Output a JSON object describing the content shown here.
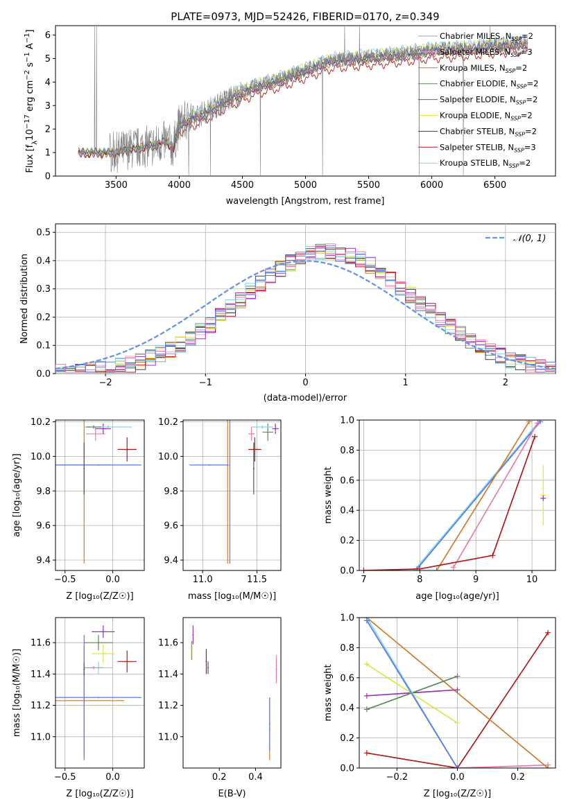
{
  "figure_title": "PLATE=0973, MJD=52426, FIBERID=0170, z=0.349",
  "colors": {
    "chabrier_miles": "#a0a0a0",
    "salpeter_miles": "#ff9ff0",
    "kroupa_miles": "#d2782a",
    "chabrier_elodie": "#5a8a5a",
    "salpeter_elodie": "#9b30b8",
    "kroupa_elodie": "#d8e84a",
    "chabrier_stelib": "#404040",
    "salpeter_stelib": "#b01818",
    "kroupa_stelib": "#80d8e0",
    "gauss": "#6496e6",
    "purple_blue": "#5a78e6",
    "pink": "#e87ab0",
    "grey_dark": "#555555"
  },
  "chart_data": [
    {
      "id": "spectrum",
      "type": "line",
      "title": "PLATE=0973, MJD=52426, FIBERID=0170, z=0.349",
      "xlabel": "wavelength [Angstrom, rest frame]",
      "ylabel": "Flux [f_λ 10⁻¹⁷ erg cm⁻² s⁻¹ A⁻¹]",
      "xlim": [
        3020,
        6980
      ],
      "ylim": [
        0,
        6.4
      ],
      "xticks": [
        3500,
        4000,
        4500,
        5000,
        5500,
        6000,
        6500
      ],
      "yticks": [
        0,
        1,
        2,
        3,
        4,
        5,
        6
      ],
      "grid": false,
      "legend_position": "top-right",
      "legend": [
        {
          "label": "Chabrier MILES, N",
          "sub": "SSP",
          "suffix": "=2",
          "color": "#a0a0a0"
        },
        {
          "label": "Salpeter MILES, N",
          "sub": "SSP",
          "suffix": "=3",
          "color": "#ff9ff0"
        },
        {
          "label": "Kroupa MILES, N",
          "sub": "SSP",
          "suffix": "=2",
          "color": "#d2782a"
        },
        {
          "label": "Chabrier ELODIE, N",
          "sub": "SSP",
          "suffix": "=2",
          "color": "#5a8a5a"
        },
        {
          "label": "Salpeter ELODIE, N",
          "sub": "SSP",
          "suffix": "=2",
          "color": "#9b30b8"
        },
        {
          "label": "Kroupa ELODIE, N",
          "sub": "SSP",
          "suffix": "=2",
          "color": "#d8e84a"
        },
        {
          "label": "Chabrier STELIB, N",
          "sub": "SSP",
          "suffix": "=2",
          "color": "#404040"
        },
        {
          "label": "Salpeter STELIB, N",
          "sub": "SSP",
          "suffix": "=3",
          "color": "#b01818"
        },
        {
          "label": "Kroupa STELIB, N",
          "sub": "SSP",
          "suffix": "=2",
          "color": "#80d8e0"
        }
      ],
      "continuum_knots": [
        [
          3200,
          1.0
        ],
        [
          3500,
          1.0
        ],
        [
          3600,
          1.15
        ],
        [
          3800,
          1.3
        ],
        [
          3900,
          1.5
        ],
        [
          3950,
          1.2
        ],
        [
          4000,
          2.2
        ],
        [
          4200,
          2.7
        ],
        [
          4400,
          3.3
        ],
        [
          4600,
          3.8
        ],
        [
          4800,
          4.1
        ],
        [
          5000,
          4.5
        ],
        [
          5200,
          4.9
        ],
        [
          5400,
          5.0
        ],
        [
          5600,
          5.1
        ],
        [
          5800,
          5.2
        ],
        [
          6000,
          5.35
        ],
        [
          6200,
          5.4
        ],
        [
          6400,
          5.5
        ],
        [
          6600,
          5.6
        ],
        [
          6760,
          5.65
        ]
      ],
      "model_offsets": [
        0.05,
        0.1,
        -0.1,
        0.0,
        -0.05,
        0.15,
        -0.05,
        -0.35,
        0.2
      ]
    },
    {
      "id": "residual-histogram",
      "type": "line",
      "xlabel": "(data-model)/error",
      "ylabel": "Normed distribution",
      "xlim": [
        -2.5,
        2.5
      ],
      "ylim": [
        0,
        0.53
      ],
      "xticks": [
        -2,
        -1,
        0,
        1,
        2
      ],
      "yticks": [
        0.0,
        0.1,
        0.2,
        0.3,
        0.4,
        0.5
      ],
      "grid": true,
      "legend_position": "top-right",
      "gauss_label": "𝒩(0, 1)",
      "bin_width": 0.1,
      "hist_mean": 0.18,
      "hist_sigma": 0.88,
      "hist_peak": 0.43
    },
    {
      "id": "age-vs-metallicity",
      "type": "scatter",
      "xlabel": "Z [log₁₀(Z/Z☉)]",
      "ylabel": "age  [log₁₀(age/yr)]",
      "xlim": [
        -0.6,
        0.33
      ],
      "ylim": [
        9.34,
        10.21
      ],
      "xticks": [
        -0.5,
        0.0
      ],
      "yticks": [
        9.4,
        9.6,
        9.8,
        10.0,
        10.2
      ],
      "grid": true,
      "points": [
        {
          "x": -0.3,
          "y": 9.95,
          "xerr": 0.27,
          "yerr": 0.57,
          "color": "#d2782a"
        },
        {
          "x": -0.15,
          "y": 9.95,
          "xerr": 0.45,
          "yerr": 0.0,
          "color": "#5a78e6"
        },
        {
          "x": -0.3,
          "y": 9.93,
          "xerr": 0.0,
          "yerr": 0.15,
          "color": "#555555"
        },
        {
          "x": 0.15,
          "y": 10.04,
          "xerr": 0.1,
          "yerr": 0.07,
          "color": "#b01818"
        },
        {
          "x": -0.18,
          "y": 10.13,
          "xerr": 0.1,
          "yerr": 0.04,
          "color": "#e87ab0"
        },
        {
          "x": -0.1,
          "y": 10.16,
          "xerr": 0.08,
          "yerr": 0.03,
          "color": "#9b30b8"
        },
        {
          "x": -0.05,
          "y": 10.17,
          "xerr": 0.25,
          "yerr": 0.01,
          "color": "#80d8e0"
        },
        {
          "x": -0.2,
          "y": 10.17,
          "xerr": 0.08,
          "yerr": 0.01,
          "color": "#5a8a5a"
        }
      ]
    },
    {
      "id": "age-vs-mass",
      "type": "scatter",
      "xlabel": "mass [log₁₀(M/M☉)]",
      "ylabel": "",
      "xlim": [
        10.82,
        11.72
      ],
      "ylim": [
        9.34,
        10.21
      ],
      "xticks": [
        11.0,
        11.5
      ],
      "yticks": [
        9.4,
        9.6,
        9.8,
        10.0,
        10.2
      ],
      "grid": true,
      "points": [
        {
          "x": 11.23,
          "y": 9.95,
          "xerr": 0.0,
          "yerr": 0.57,
          "color": "#d2782a"
        },
        {
          "x": 11.06,
          "y": 9.95,
          "xerr": 0.18,
          "yerr": 0.0,
          "color": "#5a78e6"
        },
        {
          "x": 11.25,
          "y": 9.95,
          "xerr": 0.0,
          "yerr": 0.57,
          "color": "#5a78e6"
        },
        {
          "x": 11.47,
          "y": 9.93,
          "xerr": 0.0,
          "yerr": 0.15,
          "color": "#555555"
        },
        {
          "x": 11.48,
          "y": 10.04,
          "xerr": 0.06,
          "yerr": 0.07,
          "color": "#b01818"
        },
        {
          "x": 11.45,
          "y": 10.13,
          "xerr": 0.03,
          "yerr": 0.04,
          "color": "#e87ab0"
        },
        {
          "x": 11.67,
          "y": 10.16,
          "xerr": 0.03,
          "yerr": 0.03,
          "color": "#9b30b8"
        },
        {
          "x": 11.6,
          "y": 10.14,
          "xerr": 0.05,
          "yerr": 0.05,
          "color": "#5a8a5a"
        },
        {
          "x": 11.55,
          "y": 10.17,
          "xerr": 0.1,
          "yerr": 0.01,
          "color": "#80d8e0"
        }
      ]
    },
    {
      "id": "mass-weight-vs-age",
      "type": "line",
      "xlabel": "age  [log₁₀(age/yr)]",
      "ylabel": "mass weight",
      "xlim": [
        6.92,
        10.42
      ],
      "ylim": [
        0,
        1
      ],
      "xticks": [
        7,
        8,
        9,
        10
      ],
      "yticks": [
        0.0,
        0.2,
        0.4,
        0.6,
        0.8,
        1.0
      ],
      "grid": true,
      "series": [
        {
          "color": "#80d8e0",
          "x": [
            7.9,
            10.15
          ],
          "y": [
            0.0,
            1.0
          ]
        },
        {
          "color": "#5a78e6",
          "x": [
            7.95,
            10.15
          ],
          "y": [
            0.01,
            0.99
          ]
        },
        {
          "color": "#d2782a",
          "x": [
            8.3,
            9.95
          ],
          "y": [
            0.0,
            0.99
          ]
        },
        {
          "color": "#e87ab0",
          "x": [
            8.6,
            10.1
          ],
          "y": [
            0.02,
            0.98
          ]
        },
        {
          "color": "#b01818",
          "x": [
            7.0,
            8.0,
            9.3,
            10.05
          ],
          "y": [
            0.0,
            0.01,
            0.1,
            0.89
          ]
        },
        {
          "color": "#d8e84a",
          "x": [
            10.2
          ],
          "y": [
            0.5
          ],
          "yerr": 0.2
        },
        {
          "color": "#9b30b8",
          "x": [
            10.2
          ],
          "y": [
            0.48
          ],
          "yerr": 0.0
        }
      ]
    },
    {
      "id": "mass-vs-metallicity",
      "type": "scatter",
      "xlabel": "Z [log₁₀(Z/Z☉)]",
      "ylabel": "mass [log₁₀(M/M☉)]",
      "xlim": [
        -0.6,
        0.33
      ],
      "ylim": [
        10.8,
        11.76
      ],
      "xticks": [
        -0.5,
        0.0
      ],
      "yticks": [
        11.0,
        11.2,
        11.4,
        11.6
      ],
      "grid": true,
      "points": [
        {
          "x": -0.3,
          "y": 11.23,
          "xerr": 0.42,
          "yerr": 0.35,
          "color": "#d2782a"
        },
        {
          "x": -0.15,
          "y": 11.25,
          "xerr": 0.45,
          "yerr": 0.0,
          "color": "#5a78e6"
        },
        {
          "x": -0.3,
          "y": 11.25,
          "xerr": 0.0,
          "yerr": 0.4,
          "color": "#5a78e6"
        },
        {
          "x": -0.1,
          "y": 11.67,
          "xerr": 0.12,
          "yerr": 0.04,
          "color": "#9b30b8"
        },
        {
          "x": -0.15,
          "y": 11.6,
          "xerr": 0.15,
          "yerr": 0.05,
          "color": "#5a8a5a"
        },
        {
          "x": -0.1,
          "y": 11.53,
          "xerr": 0.12,
          "yerr": 0.06,
          "color": "#d8e84a"
        },
        {
          "x": 0.15,
          "y": 11.48,
          "xerr": 0.1,
          "yerr": 0.07,
          "color": "#b01818"
        },
        {
          "x": -0.15,
          "y": 11.44,
          "xerr": 0.15,
          "yerr": 0.04,
          "color": "#80d8e0"
        },
        {
          "x": -0.2,
          "y": 11.44,
          "xerr": 0.1,
          "yerr": 0.01,
          "color": "#e87ab0"
        },
        {
          "x": -0.3,
          "y": 11.43,
          "xerr": 0.0,
          "yerr": 0.04,
          "color": "#555555"
        }
      ]
    },
    {
      "id": "mass-vs-extinction",
      "type": "scatter",
      "xlabel": "E(B-V)",
      "ylabel": "",
      "xlim": [
        0.0,
        0.54
      ],
      "ylim": [
        10.8,
        11.76
      ],
      "xticks": [
        0.2,
        0.4
      ],
      "yticks": [
        11.0,
        11.2,
        11.4,
        11.6
      ],
      "grid": false,
      "points": [
        {
          "x": 0.478,
          "y": 11.05,
          "xerr": 0.0,
          "yerr": 0.2,
          "color": "#d2782a"
        },
        {
          "x": 0.478,
          "y": 11.08,
          "xerr": 0.0,
          "yerr": 0.17,
          "color": "#5a78e6"
        },
        {
          "x": 0.055,
          "y": 11.65,
          "xerr": 0.0,
          "yerr": 0.06,
          "color": "#9b30b8"
        },
        {
          "x": 0.048,
          "y": 11.55,
          "xerr": 0.0,
          "yerr": 0.06,
          "color": "#5a8a5a"
        },
        {
          "x": 0.045,
          "y": 11.55,
          "xerr": 0.0,
          "yerr": 0.05,
          "color": "#d8e84a"
        },
        {
          "x": 0.128,
          "y": 11.48,
          "xerr": 0.0,
          "yerr": 0.08,
          "color": "#b01818"
        },
        {
          "x": 0.138,
          "y": 11.44,
          "xerr": 0.0,
          "yerr": 0.04,
          "color": "#555555"
        },
        {
          "x": 0.515,
          "y": 11.43,
          "xerr": 0.0,
          "yerr": 0.09,
          "color": "#e87ab0"
        }
      ]
    },
    {
      "id": "mass-weight-vs-metallicity",
      "type": "line",
      "xlabel": "Z [log₁₀(Z/Z☉)]",
      "ylabel": "mass weight",
      "xlim": [
        -0.325,
        0.325
      ],
      "ylim": [
        0,
        1
      ],
      "xticks": [
        -0.2,
        0.0,
        0.2
      ],
      "yticks": [
        0.0,
        0.2,
        0.4,
        0.6,
        0.8,
        1.0
      ],
      "grid": true,
      "series": [
        {
          "color": "#b01818",
          "x": [
            -0.3,
            0.0,
            0.3
          ],
          "y": [
            0.1,
            0.0,
            0.9
          ]
        },
        {
          "color": "#e87ab0",
          "x": [
            0.0,
            0.3
          ],
          "y": [
            0.0,
            0.02
          ]
        },
        {
          "color": "#d2782a",
          "x": [
            -0.3,
            0.3
          ],
          "y": [
            1.0,
            0.0
          ]
        },
        {
          "color": "#9b30b8",
          "x": [
            -0.3,
            0.0
          ],
          "y": [
            0.48,
            0.52
          ]
        },
        {
          "color": "#5a8a5a",
          "x": [
            -0.3,
            0.0
          ],
          "y": [
            0.39,
            0.61
          ]
        },
        {
          "color": "#d8e84a",
          "x": [
            -0.3,
            0.0
          ],
          "y": [
            0.69,
            0.3
          ]
        },
        {
          "color": "#80d8e0",
          "x": [
            -0.3,
            0.0
          ],
          "y": [
            1.0,
            0.0
          ]
        },
        {
          "color": "#5a78e6",
          "x": [
            -0.3,
            0.0
          ],
          "y": [
            0.98,
            0.0
          ]
        }
      ]
    }
  ]
}
